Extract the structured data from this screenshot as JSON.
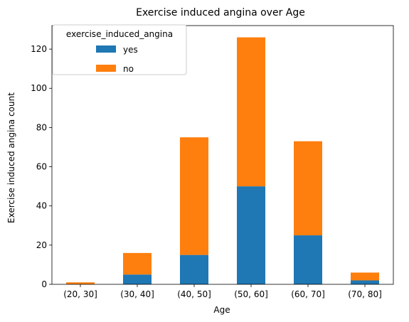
{
  "chart_data": {
    "type": "bar",
    "stacked": true,
    "title": "Exercise induced angina over Age",
    "xlabel": "Age",
    "ylabel": "Exercise induced angina count",
    "categories": [
      "(20, 30]",
      "(30, 40]",
      "(40, 50]",
      "(50, 60]",
      "(60, 70]",
      "(70, 80]"
    ],
    "series": [
      {
        "name": "yes",
        "color": "#1f77b4",
        "values": [
          0,
          5,
          15,
          50,
          25,
          2
        ]
      },
      {
        "name": "no",
        "color": "#ff7f0e",
        "values": [
          1,
          11,
          60,
          76,
          48,
          4
        ]
      }
    ],
    "ylim": [
      0,
      132
    ],
    "yticks": [
      0,
      20,
      40,
      60,
      80,
      100,
      120
    ],
    "legend": {
      "title": "exercise_induced_angina",
      "position": "top-left"
    },
    "grid": false
  }
}
